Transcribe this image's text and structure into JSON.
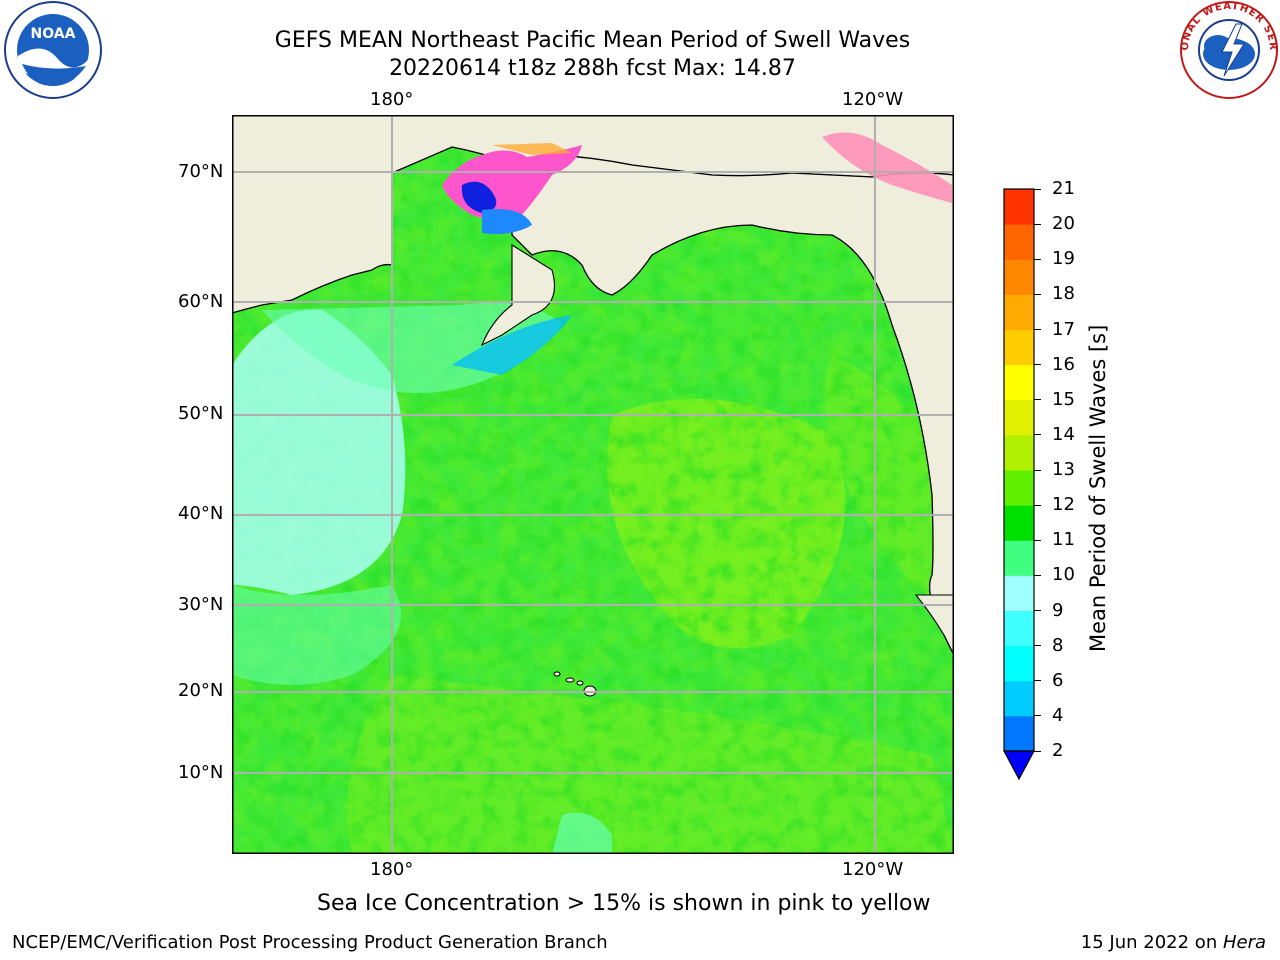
{
  "header": {
    "title_line1": "GEFS MEAN Northeast Pacific Mean Period of Swell Waves",
    "title_line2": "20220614 t18z 288h fcst   Max: 14.87"
  },
  "logos": {
    "noara": "NOAA",
    "nws": "NATIONAL WEATHER SERVICE"
  },
  "map": {
    "lon_labels_top": [
      "180°",
      "120°W"
    ],
    "lon_labels_bottom": [
      "180°",
      "120°W"
    ],
    "lat_labels": [
      "70°N",
      "60°N",
      "50°N",
      "40°N",
      "30°N",
      "20°N",
      "10°N"
    ],
    "colors": {
      "land": "#efeddc",
      "grid": "#b0b0b0"
    }
  },
  "colorbar": {
    "title": "Mean Period of Swell Waves [s]",
    "ticks": [
      "2",
      "4",
      "6",
      "8",
      "9",
      "10",
      "11",
      "12",
      "13",
      "14",
      "15",
      "16",
      "17",
      "18",
      "19",
      "20",
      "21"
    ],
    "colors": [
      "#0077ff",
      "#00ccff",
      "#00ffff",
      "#40ffff",
      "#a0ffff",
      "#40ff80",
      "#00e000",
      "#60f000",
      "#b0f000",
      "#e0f000",
      "#ffff00",
      "#ffcc00",
      "#ffaa00",
      "#ff8800",
      "#ff6600",
      "#ff3300",
      "#ff0000"
    ],
    "extend_color": "#0000ff"
  },
  "caption": "Sea Ice Concentration > 15% is shown in pink to yellow",
  "footer": {
    "left": "NCEP/EMC/Verification Post Processing Product Generation Branch",
    "right_prefix": "15 Jun 2022 on ",
    "right_italic": "Hera"
  }
}
